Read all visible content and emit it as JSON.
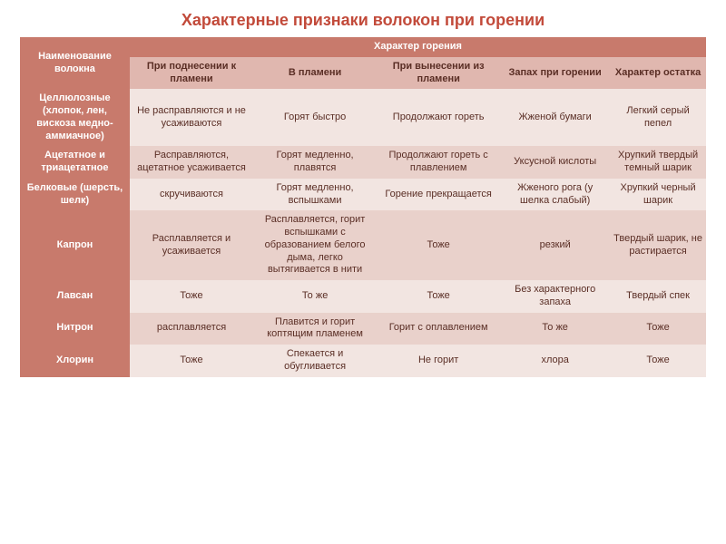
{
  "title": "Характерные признаки волокон при горении",
  "title_color": "#c24a3a",
  "title_fontsize": 18,
  "palette": {
    "header_bg": "#c87a6c",
    "header_fg": "#ffffff",
    "subheader_bg": "#e0b7af",
    "subheader_fg": "#5a2e25",
    "rowlabel_bg": "#c87a6c",
    "rowlabel_fg": "#ffffff",
    "band_a": "#f2e5e1",
    "band_b": "#e9d1cb",
    "cell_fg": "#5a2e25",
    "border": "#ffffff"
  },
  "header": {
    "name_col": "Наименование волокна",
    "group": "Характер горения",
    "subs": [
      "При поднесении к пламени",
      "В пламени",
      "При вынесении из пламени",
      "Запах при горении",
      "Характер остатка"
    ]
  },
  "rows": [
    {
      "label": "Целлюлозные (хлопок, лен, вискоза медно-аммиачное)",
      "cells": [
        "Не расправляются и не усаживаются",
        "Горят быстро",
        "Продолжают гореть",
        "Жженой бумаги",
        "Легкий серый пепел"
      ]
    },
    {
      "label": "Ацетатное и триацетатное",
      "cells": [
        "Расправляются, ацетатное усаживается",
        "Горят медленно, плавятся",
        "Продолжают гореть с плавлением",
        "Уксусной кислоты",
        "Хрупкий твердый темный шарик"
      ]
    },
    {
      "label": "Белковые (шерсть, шелк)",
      "cells": [
        "скручиваются",
        "Горят медленно, вспышками",
        "Горение прекращается",
        "Жженого рога (у шелка слабый)",
        "Хрупкий черный шарик"
      ]
    },
    {
      "label": "Капрон",
      "cells": [
        "Расплавляется и усаживается",
        "Расплавляется, горит вспышками с образованием белого дыма, легко вытягивается в нити",
        "Тоже",
        "резкий",
        "Твердый шарик, не растирается"
      ]
    },
    {
      "label": "Лавсан",
      "cells": [
        "Тоже",
        "То же",
        "Тоже",
        "Без характерного запаха",
        "Твердый спек"
      ]
    },
    {
      "label": "Нитрон",
      "cells": [
        "расплавляется",
        "Плавится и горит коптящим пламенем",
        "Горит с оплавлением",
        "То же",
        "Тоже"
      ]
    },
    {
      "label": "Хлорин",
      "cells": [
        "Тоже",
        "Спекается и обугливается",
        "Не горит",
        "хлора",
        "Тоже"
      ]
    }
  ]
}
